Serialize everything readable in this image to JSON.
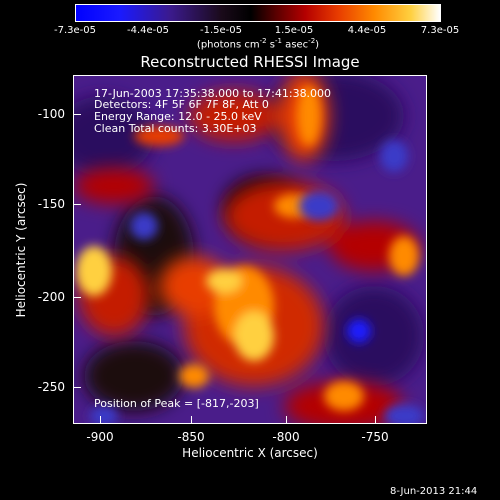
{
  "colorbar": {
    "ticks": [
      "-7.3e-05",
      "-4.4e-05",
      "-1.5e-05",
      "1.5e-05",
      "4.4e-05",
      "7.3e-05"
    ],
    "unit_text": "(photons cm",
    "unit_exp1": "-2",
    "unit_mid": " s",
    "unit_exp2": "-1",
    "unit_mid2": " asec",
    "unit_exp3": "-2",
    "unit_close": ")"
  },
  "title": "Reconstructed RHESSI Image",
  "annotation": {
    "time": "17-Jun-2003 17:35:38.000 to 17:41:38.000",
    "detectors": "Detectors: 4F 5F 6F 7F 8F, Att 0",
    "energy": "Energy Range: 12.0 - 25.0 keV",
    "clean": "Clean    Total counts: 3.30E+03",
    "peak": "Position of Peak = [-817,-203]"
  },
  "axes": {
    "xlabel": "Heliocentric X (arcsec)",
    "ylabel": "Heliocentric Y (arcsec)",
    "xticks": [
      "-900",
      "-850",
      "-800",
      "-750"
    ],
    "yticks": [
      "-100",
      "-150",
      "-200",
      "-250"
    ]
  },
  "datestamp": "8-Jun-2013 21:44",
  "colors": {
    "hot": "#ff8a00",
    "cold": "#0000ff",
    "mid": "#5a1f9a"
  }
}
